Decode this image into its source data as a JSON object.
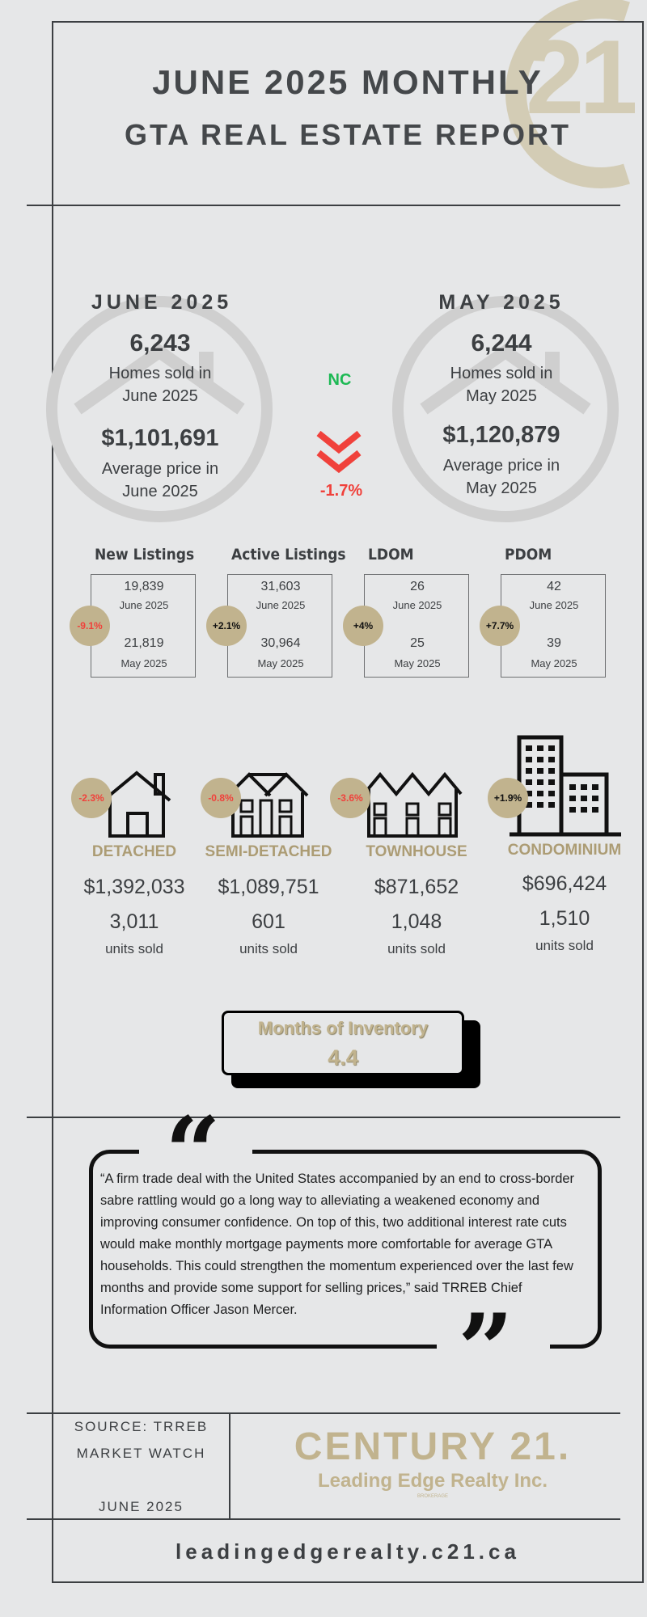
{
  "header": {
    "line1": "JUNE 2025 MONTHLY",
    "line2": "GTA REAL ESTATE REPORT"
  },
  "logo_watermark": {
    "text": "21"
  },
  "comparison": {
    "current": {
      "heading": "JUNE 2025",
      "homes_sold": "6,243",
      "homes_sold_label": "Homes sold in June 2025",
      "avg_price": "$1,101,691",
      "avg_price_label": "Average price in June 2025"
    },
    "previous": {
      "heading": "MAY 2025",
      "homes_sold": "6,244",
      "homes_sold_label": "Homes sold in May 2025",
      "avg_price": "$1,120,879",
      "avg_price_label": "Average price in May 2025"
    },
    "sales_change": "NC",
    "price_change": "-1.7%",
    "colors": {
      "positive": "#1db954",
      "negative": "#f0413b"
    }
  },
  "stats": [
    {
      "label": "New Listings",
      "june_value": "19,839",
      "june_label": "June 2025",
      "may_value": "21,819",
      "may_label": "May 2025",
      "change": "-9.1%",
      "negative": true
    },
    {
      "label": "Active Listings",
      "june_value": "31,603",
      "june_label": "June 2025",
      "may_value": "30,964",
      "may_label": "May 2025",
      "change": "+2.1%",
      "negative": false
    },
    {
      "label": "LDOM",
      "june_value": "26",
      "june_label": "June 2025",
      "may_value": "25",
      "may_label": "May 2025",
      "change": "+4%",
      "negative": false
    },
    {
      "label": "PDOM",
      "june_value": "42",
      "june_label": "June 2025",
      "may_value": "39",
      "may_label": "May 2025",
      "change": "+7.7%",
      "negative": false
    }
  ],
  "property_types": [
    {
      "name": "DETACHED",
      "price": "$1,392,033",
      "units": "3,011",
      "units_label": "units sold",
      "change": "-2.3%",
      "negative": true,
      "icon": "detached-house-icon"
    },
    {
      "name": "SEMI-DETACHED",
      "price": "$1,089,751",
      "units": "601",
      "units_label": "units sold",
      "change": "-0.8%",
      "negative": true,
      "icon": "semi-detached-icon"
    },
    {
      "name": "TOWNHOUSE",
      "price": "$871,652",
      "units": "1,048",
      "units_label": "units sold",
      "change": "-3.6%",
      "negative": true,
      "icon": "townhouse-icon"
    },
    {
      "name": "CONDOMINIUM",
      "price": "$696,424",
      "units": "1,510",
      "units_label": "units sold",
      "change": "+1.9%",
      "negative": false,
      "icon": "condominium-icon"
    }
  ],
  "inventory": {
    "label": "Months of Inventory",
    "value": "4.4"
  },
  "quote": {
    "text": "“A firm trade deal with the United States accompanied by an end to cross-border sabre rattling would go a long way to alleviating a weakened economy and improving consumer confidence. On top of this, two additional interest rate cuts would make monthly mortgage payments more comfortable for average GTA households. This could strengthen the momentum experienced over the last few months and provide some support for selling prices,” said TRREB Chief Information Officer Jason Mercer."
  },
  "footer": {
    "source_line1": "SOURCE: TRREB",
    "source_line2": "MARKET WATCH",
    "source_date": "JUNE 2025",
    "brand": "CENTURY 21.",
    "brand_sub": "Leading Edge Realty Inc.",
    "brokerage": "BROKERAGE",
    "website": "leadingedgerealty.c21.ca"
  },
  "colors": {
    "gold": "#c1b38e",
    "gold_text": "#ac9c74",
    "dark": "#3c3f42",
    "background": "#e6e7e8"
  }
}
